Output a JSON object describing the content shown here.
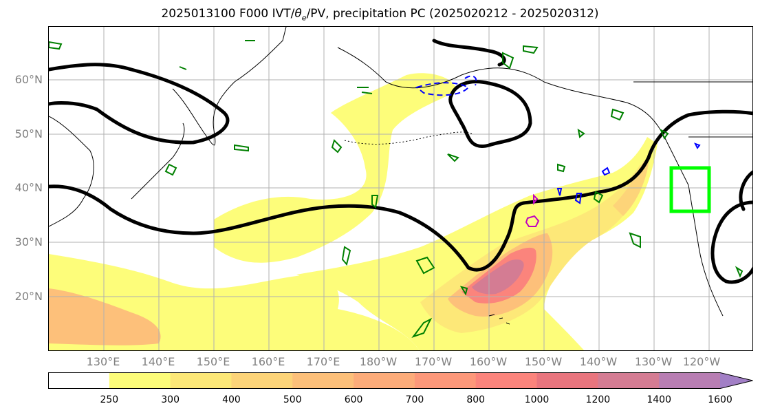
{
  "title": "2025013100 F000 IVT/θe/PV, precipitation PC (2025020212 - 2025020312)",
  "title_parts": {
    "prefix": "2025013100 F000 IVT/",
    "theta_symbol": "θ",
    "theta_subscript": "e",
    "suffix": "/PV, precipitation PC (2025020212 - 2025020312)"
  },
  "latitude_labels": [
    "60°N",
    "50°N",
    "40°N",
    "30°N",
    "20°N"
  ],
  "longitude_labels": [
    "130°E",
    "140°E",
    "150°E",
    "160°E",
    "170°E",
    "180°W",
    "170°W",
    "160°W",
    "150°W",
    "140°W",
    "130°W",
    "120°W"
  ],
  "colorbar": {
    "ticks": [
      "250",
      "300",
      "400",
      "500",
      "600",
      "700",
      "800",
      "1000",
      "1200",
      "1400",
      "1600"
    ],
    "colors": [
      "#ffffff",
      "#fdfd7a",
      "#fde878",
      "#fdd479",
      "#fdc07a",
      "#fdac7a",
      "#fd987a",
      "#fb847c",
      "#e9757e",
      "#d47c93",
      "#b87eb3",
      "#a27fc6"
    ],
    "extend": "max"
  },
  "legend_colors": {
    "ivt_contours": "#008000",
    "pv_line": "#000000",
    "theta_e_negative": "#0000ff",
    "theta_e_positive": "#c000c0",
    "highlight_box": "#00ff00",
    "coastline": "#000000",
    "gridline": "#b0b0b0"
  }
}
